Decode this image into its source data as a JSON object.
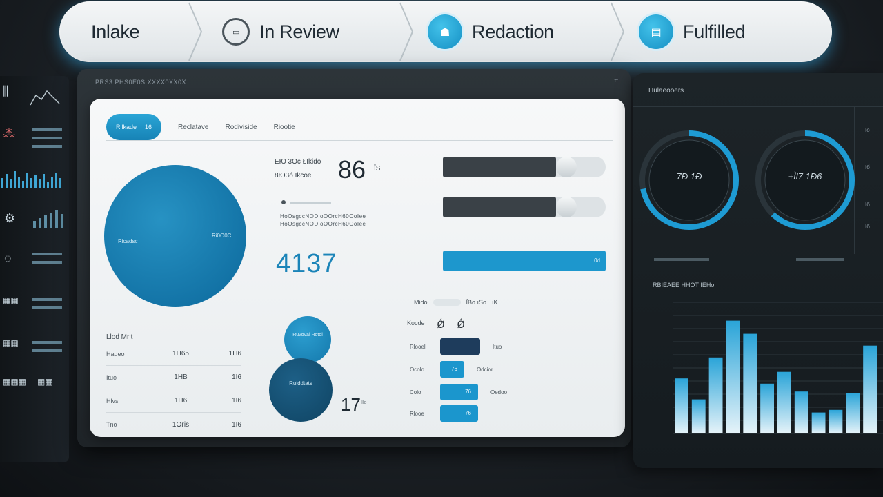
{
  "pipeline": {
    "stages": [
      {
        "label": "Inlake"
      },
      {
        "label": "In Review",
        "icon": "document-icon"
      },
      {
        "label": "Redaction",
        "icon": "mask-icon"
      },
      {
        "label": "Fulfilled",
        "icon": "folder-icon"
      }
    ],
    "accent": "#1a8fc4"
  },
  "frame": {
    "title": "PRS3 PHS0E0S XXXX0XX0X",
    "close_glyph": "⌗"
  },
  "panel": {
    "tabs": {
      "active_label": "Rilkade",
      "active_count": "16",
      "others": [
        "Reclatave",
        "Rodiviside",
        "Riootie"
      ]
    },
    "circle_labels": {
      "left": "Ricadsc",
      "right": "Ri0O0C"
    },
    "left_table": {
      "header": "Llod Mrlt",
      "rows": [
        [
          "Hadeo",
          "1H65",
          "1H6"
        ],
        [
          "Ituo",
          "1HB",
          "1I6"
        ],
        [
          "Hlvs",
          "1H6",
          "1I6"
        ],
        [
          "Tno",
          "1Oгis",
          "1I6"
        ]
      ]
    },
    "stats": {
      "line1": "ЕЮ 3Oc  ŁIkido",
      "line2": "8Ю3ó  Ikcoe",
      "number": "86",
      "unit": "ЇS"
    },
    "note": "НoOsgccNODloOOrcH60OoIee",
    "big_number": "4137",
    "bars": [
      {
        "fill": 0.78,
        "color": "#3a4147"
      },
      {
        "fill": 0.78,
        "color": "#3a4147"
      },
      {
        "fill": 1.0,
        "color": "#1d97cd",
        "value": "0d"
      }
    ],
    "filter": {
      "label": "Mido",
      "tail": "ЇBo ıSo",
      "end": "ıK"
    },
    "small_circles": {
      "top": "Ruvoval Rotol",
      "bottom": "Ruiddtats"
    },
    "small_number": "17",
    "small_number_sub": "Ilo",
    "mini_header": {
      "label": "Kocde",
      "icons": [
        "Ǿ",
        "Ǿ"
      ]
    },
    "mini_rows": [
      {
        "label": "Rlooel",
        "value": "",
        "side": "Ituo",
        "fill": 1.0,
        "color": "#1e3c5c"
      },
      {
        "label": "Ocolo",
        "value": "76",
        "side": "Odcior",
        "fill": 0.6,
        "color": "#1b96cd"
      },
      {
        "label": "Colo",
        "value": "76",
        "side": "Oedoo",
        "fill": 0.95,
        "color": "#1b96cd"
      },
      {
        "label": "Rlooe",
        "value": "76",
        "side": "",
        "fill": 0.95,
        "color": "#1b96cd"
      }
    ]
  },
  "analytics": {
    "title": "Hulaeooers",
    "gauges": [
      {
        "value": "7Ð 1Ð",
        "fraction": 0.72
      },
      {
        "value": "+Ìl7 1Ð6",
        "fraction": 0.62
      }
    ],
    "side_labels": [
      "Ió",
      "Iб",
      "Iб",
      "Iб"
    ],
    "subtitle": "RBIEAEE HHOT IЕНo",
    "chart_data": {
      "type": "bar",
      "title": "",
      "values": [
        42,
        26,
        58,
        86,
        76,
        38,
        47,
        32,
        16,
        18,
        31,
        67
      ],
      "ylim": [
        0,
        100
      ],
      "grid": true
    }
  }
}
